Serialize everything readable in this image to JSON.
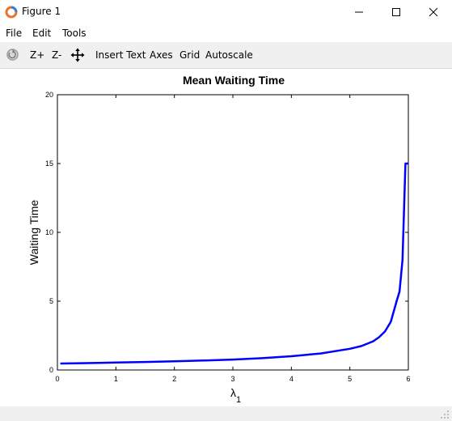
{
  "window": {
    "title": "Figure 1"
  },
  "menu": {
    "file": "File",
    "edit": "Edit",
    "tools": "Tools"
  },
  "toolbar": {
    "zoom_in": "Z+",
    "zoom_out": "Z-",
    "insert_text": "Insert Text",
    "axes": "Axes",
    "grid": "Grid",
    "autoscale": "Autoscale"
  },
  "colors": {
    "line": "#0000ff",
    "toolbar_bg": "#f0f0f0"
  },
  "chart_data": {
    "type": "line",
    "title": "Mean Waiting Time",
    "ylabel": "Waiting Time",
    "xlabel_main": "λ",
    "xlabel_sub": "1",
    "xlim": [
      0,
      6
    ],
    "ylim": [
      0,
      20
    ],
    "xticks": [
      "0",
      "1",
      "2",
      "3",
      "4",
      "5",
      "6"
    ],
    "yticks": [
      "0",
      "5",
      "10",
      "15",
      "20"
    ],
    "grid": false,
    "series": [
      {
        "x": [
          0.05,
          0.5,
          1.0,
          1.5,
          2.0,
          2.5,
          3.0,
          3.5,
          4.0,
          4.5,
          5.0,
          5.2,
          5.4,
          5.5,
          5.6,
          5.7,
          5.8,
          5.85,
          5.9,
          5.95,
          6.0
        ],
        "y": [
          0.47,
          0.5,
          0.54,
          0.58,
          0.63,
          0.69,
          0.76,
          0.86,
          1.0,
          1.2,
          1.54,
          1.74,
          2.09,
          2.38,
          2.8,
          3.5,
          5.0,
          5.7,
          8.0,
          15.0,
          15.0
        ]
      }
    ]
  }
}
